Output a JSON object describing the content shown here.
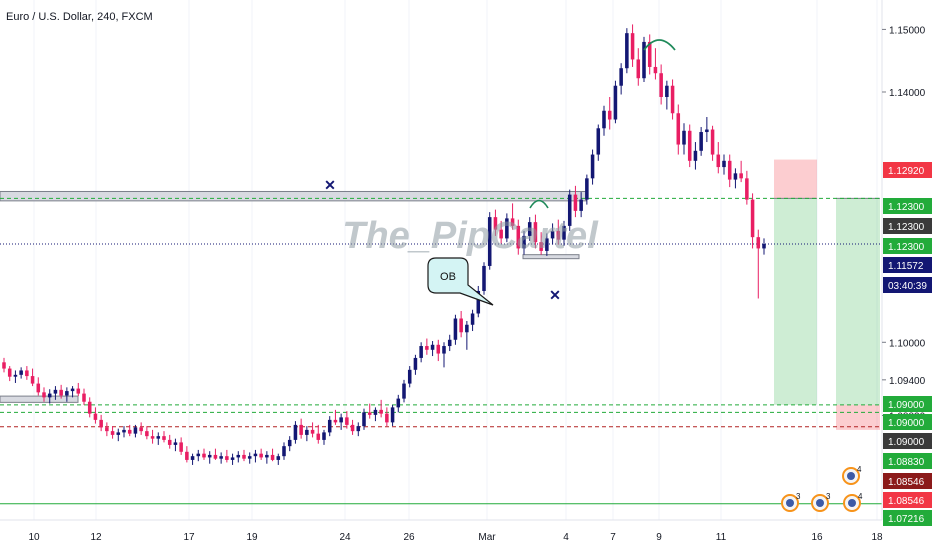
{
  "header": {
    "symbol_title": "Euro / U.S. Dollar, 240, FXCM"
  },
  "watermark": "The_PipCartel",
  "callout": {
    "text": "OB"
  },
  "countdown": "03:40:39",
  "chart_data": {
    "type": "candlestick",
    "title": "Euro / U.S. Dollar, 240, FXCM",
    "ylim": [
      1.0716,
      1.1547
    ],
    "y_ticks": [
      "1.15000",
      "1.14000",
      "1.10000",
      "1.09400",
      "1.08830"
    ],
    "x_ticks": [
      "10",
      "12",
      "17",
      "19",
      "24",
      "26",
      "Mar",
      "4",
      "7",
      "9",
      "11",
      "16",
      "18"
    ],
    "price_tags": [
      {
        "value": "1.12920",
        "price": 1.1292,
        "bg": "#f23645",
        "fg": "#ffffff"
      },
      {
        "value": "1.12300",
        "price": 1.123,
        "bg": "#22ab3a",
        "fg": "#ffffff"
      },
      {
        "value": "1.12300",
        "price": 1.123,
        "bg": "#3a3a3a",
        "fg": "#ffffff",
        "pos": "stack-below"
      },
      {
        "value": "1.12300",
        "price": 1.121,
        "bg": "#22ab3a",
        "fg": "#ffffff"
      },
      {
        "value": "1.11572",
        "price": 1.1157,
        "bg": "#131773",
        "fg": "#ffffff"
      },
      {
        "value": "1.09000",
        "price": 1.09,
        "bg": "#22ab3a",
        "fg": "#ffffff"
      },
      {
        "value": "1.09000",
        "price": 1.0888,
        "bg": "#22ab3a",
        "fg": "#ffffff"
      },
      {
        "value": "1.09000",
        "price": 1.0863,
        "bg": "#3a3a3a",
        "fg": "#ffffff"
      },
      {
        "value": "1.08830",
        "price": 1.0835,
        "bg": "#22ab3a",
        "fg": "#ffffff"
      },
      {
        "value": "1.08546",
        "price": 1.0806,
        "bg": "#8b1a1a",
        "fg": "#ffffff"
      },
      {
        "value": "1.08546",
        "price": 1.0777,
        "bg": "#f23645",
        "fg": "#ffffff"
      },
      {
        "value": "1.07216",
        "price": 1.0742,
        "bg": "#22ab3a",
        "fg": "#ffffff"
      }
    ],
    "levels": [
      {
        "name": "resistance-zone-level",
        "price": 1.123,
        "color": "#22ab3a",
        "style": "dashed"
      },
      {
        "name": "current-price-line",
        "price": 1.1157,
        "color": "#131773",
        "style": "dotted"
      },
      {
        "name": "target-level-a",
        "price": 1.09,
        "color": "#22ab3a",
        "style": "dashed"
      },
      {
        "name": "target-level-b",
        "price": 1.0888,
        "color": "#22ab3a",
        "style": "dashed"
      },
      {
        "name": "stop-level",
        "price": 1.0865,
        "color": "#b22222",
        "style": "dashed"
      },
      {
        "name": "bottom-line",
        "price": 1.0742,
        "color": "#22ab3a",
        "style": "solid"
      }
    ],
    "candles_key": [
      "o",
      "h",
      "l",
      "c"
    ],
    "candles": [
      [
        1.0968,
        1.0975,
        1.0952,
        1.0958
      ],
      [
        1.0958,
        1.0962,
        1.0938,
        1.0945
      ],
      [
        1.0945,
        1.0955,
        1.0935,
        1.0948
      ],
      [
        1.0948,
        1.096,
        1.0942,
        1.0955
      ],
      [
        1.0955,
        1.0962,
        1.094,
        1.0946
      ],
      [
        1.0946,
        1.0958,
        1.093,
        1.0934
      ],
      [
        1.0934,
        1.0944,
        1.0915,
        1.092
      ],
      [
        1.092,
        1.0928,
        1.0905,
        1.0912
      ],
      [
        1.0912,
        1.0925,
        1.0902,
        1.0918
      ],
      [
        1.0918,
        1.093,
        1.0908,
        1.0924
      ],
      [
        1.0924,
        1.0932,
        1.091,
        1.0915
      ],
      [
        1.0915,
        1.0928,
        1.0905,
        1.0922
      ],
      [
        1.0922,
        1.093,
        1.0912,
        1.0926
      ],
      [
        1.0926,
        1.0935,
        1.0914,
        1.0918
      ],
      [
        1.0918,
        1.0926,
        1.09,
        1.0905
      ],
      [
        1.0905,
        1.0912,
        1.088,
        1.0886
      ],
      [
        1.0886,
        1.0896,
        1.087,
        1.0876
      ],
      [
        1.0876,
        1.0884,
        1.0858,
        1.0864
      ],
      [
        1.0864,
        1.0872,
        1.085,
        1.0858
      ],
      [
        1.0858,
        1.0866,
        1.0846,
        1.0852
      ],
      [
        1.0852,
        1.0862,
        1.0842,
        1.0856
      ],
      [
        1.0856,
        1.0866,
        1.0848,
        1.086
      ],
      [
        1.086,
        1.0868,
        1.085,
        1.0854
      ],
      [
        1.0854,
        1.0868,
        1.0848,
        1.0864
      ],
      [
        1.0864,
        1.0872,
        1.0852,
        1.0858
      ],
      [
        1.0858,
        1.0866,
        1.0845,
        1.085
      ],
      [
        1.085,
        1.086,
        1.0838,
        1.0846
      ],
      [
        1.0846,
        1.0856,
        1.0836,
        1.085
      ],
      [
        1.085,
        1.0858,
        1.084,
        1.0844
      ],
      [
        1.0844,
        1.0852,
        1.083,
        1.0836
      ],
      [
        1.0836,
        1.0846,
        1.0826,
        1.084
      ],
      [
        1.084,
        1.0848,
        1.082,
        1.0825
      ],
      [
        1.0825,
        1.0834,
        1.0808,
        1.0812
      ],
      [
        1.0812,
        1.0822,
        1.0804,
        1.0818
      ],
      [
        1.0818,
        1.0828,
        1.081,
        1.0822
      ],
      [
        1.0822,
        1.083,
        1.0812,
        1.0816
      ],
      [
        1.0816,
        1.0826,
        1.0806,
        1.082
      ],
      [
        1.082,
        1.083,
        1.0812,
        1.0814
      ],
      [
        1.0814,
        1.0824,
        1.0806,
        1.0818
      ],
      [
        1.0818,
        1.0828,
        1.0808,
        1.0812
      ],
      [
        1.0812,
        1.0822,
        1.0804,
        1.0816
      ],
      [
        1.0816,
        1.0826,
        1.0808,
        1.082
      ],
      [
        1.082,
        1.0828,
        1.081,
        1.0814
      ],
      [
        1.0814,
        1.0824,
        1.0806,
        1.0818
      ],
      [
        1.0818,
        1.0828,
        1.0808,
        1.0822
      ],
      [
        1.0822,
        1.083,
        1.0812,
        1.0816
      ],
      [
        1.0816,
        1.0826,
        1.0806,
        1.082
      ],
      [
        1.082,
        1.083,
        1.081,
        1.0812
      ],
      [
        1.0812,
        1.0822,
        1.0804,
        1.0818
      ],
      [
        1.0818,
        1.084,
        1.0812,
        1.0834
      ],
      [
        1.0834,
        1.085,
        1.0826,
        1.0844
      ],
      [
        1.0844,
        1.0874,
        1.0838,
        1.0868
      ],
      [
        1.0868,
        1.0878,
        1.0846,
        1.0852
      ],
      [
        1.0852,
        1.0866,
        1.0842,
        1.086
      ],
      [
        1.086,
        1.0872,
        1.0848,
        1.0854
      ],
      [
        1.0854,
        1.0868,
        1.0838,
        1.0844
      ],
      [
        1.0844,
        1.086,
        1.0836,
        1.0856
      ],
      [
        1.0856,
        1.0882,
        1.085,
        1.0876
      ],
      [
        1.0876,
        1.0892,
        1.0868,
        1.0872
      ],
      [
        1.0872,
        1.0886,
        1.086,
        1.088
      ],
      [
        1.088,
        1.089,
        1.0862,
        1.0868
      ],
      [
        1.0868,
        1.0876,
        1.0852,
        1.0858
      ],
      [
        1.0858,
        1.0872,
        1.085,
        1.0866
      ],
      [
        1.0866,
        1.0894,
        1.086,
        1.0888
      ],
      [
        1.0888,
        1.0902,
        1.0878,
        1.0884
      ],
      [
        1.0884,
        1.0896,
        1.0874,
        1.0892
      ],
      [
        1.0892,
        1.0908,
        1.088,
        1.0886
      ],
      [
        1.0886,
        1.0896,
        1.0866,
        1.0872
      ],
      [
        1.0872,
        1.09,
        1.0866,
        1.0896
      ],
      [
        1.0896,
        1.0916,
        1.0888,
        1.091
      ],
      [
        1.091,
        1.094,
        1.0904,
        1.0934
      ],
      [
        1.0934,
        1.0962,
        1.0928,
        1.0956
      ],
      [
        1.0956,
        1.098,
        1.0948,
        1.0975
      ],
      [
        1.0975,
        1.1,
        1.0968,
        1.0994
      ],
      [
        1.0994,
        1.1006,
        1.098,
        1.0988
      ],
      [
        1.0988,
        1.1002,
        1.0978,
        1.0996
      ],
      [
        1.0996,
        1.1004,
        1.097,
        1.0982
      ],
      [
        1.0982,
        1.1,
        1.096,
        1.0994
      ],
      [
        1.0994,
        1.1012,
        1.0986,
        1.1004
      ],
      [
        1.1004,
        1.1044,
        1.0996,
        1.1038
      ],
      [
        1.1038,
        1.105,
        1.1008,
        1.1016
      ],
      [
        1.1016,
        1.1034,
        1.0988,
        1.1028
      ],
      [
        1.1028,
        1.1052,
        1.1018,
        1.1046
      ],
      [
        1.1046,
        1.109,
        1.104,
        1.1082
      ],
      [
        1.1082,
        1.1128,
        1.1076,
        1.1122
      ],
      [
        1.1122,
        1.1208,
        1.1116,
        1.12
      ],
      [
        1.12,
        1.1212,
        1.117,
        1.118
      ],
      [
        1.118,
        1.1194,
        1.1158,
        1.1166
      ],
      [
        1.1166,
        1.1206,
        1.116,
        1.1198
      ],
      [
        1.1198,
        1.1222,
        1.118,
        1.1186
      ],
      [
        1.1186,
        1.1196,
        1.114,
        1.115
      ],
      [
        1.115,
        1.1178,
        1.114,
        1.117
      ],
      [
        1.117,
        1.12,
        1.1162,
        1.1192
      ],
      [
        1.1192,
        1.1204,
        1.115,
        1.116
      ],
      [
        1.116,
        1.1176,
        1.114,
        1.1146
      ],
      [
        1.1146,
        1.1174,
        1.1138,
        1.1166
      ],
      [
        1.1166,
        1.119,
        1.1156,
        1.1178
      ],
      [
        1.1178,
        1.1196,
        1.1156,
        1.1164
      ],
      [
        1.1164,
        1.1194,
        1.1154,
        1.1186
      ],
      [
        1.1186,
        1.1244,
        1.1178,
        1.1236
      ],
      [
        1.1236,
        1.125,
        1.12,
        1.121
      ],
      [
        1.121,
        1.124,
        1.12,
        1.1228
      ],
      [
        1.1228,
        1.1268,
        1.122,
        1.1262
      ],
      [
        1.1262,
        1.1308,
        1.1252,
        1.13
      ],
      [
        1.13,
        1.1348,
        1.129,
        1.1342
      ],
      [
        1.1342,
        1.1378,
        1.133,
        1.137
      ],
      [
        1.137,
        1.1392,
        1.134,
        1.1356
      ],
      [
        1.1356,
        1.1418,
        1.135,
        1.141
      ],
      [
        1.141,
        1.1446,
        1.1396,
        1.1438
      ],
      [
        1.1438,
        1.1502,
        1.143,
        1.1494
      ],
      [
        1.1494,
        1.1508,
        1.144,
        1.1452
      ],
      [
        1.1452,
        1.147,
        1.141,
        1.1422
      ],
      [
        1.1422,
        1.1488,
        1.1416,
        1.148
      ],
      [
        1.148,
        1.1492,
        1.1428,
        1.144
      ],
      [
        1.144,
        1.147,
        1.142,
        1.143
      ],
      [
        1.143,
        1.1444,
        1.138,
        1.1392
      ],
      [
        1.1392,
        1.1418,
        1.1372,
        1.141
      ],
      [
        1.141,
        1.142,
        1.1356,
        1.1366
      ],
      [
        1.1366,
        1.138,
        1.13,
        1.1316
      ],
      [
        1.1316,
        1.135,
        1.13,
        1.1338
      ],
      [
        1.1338,
        1.1348,
        1.128,
        1.129
      ],
      [
        1.129,
        1.132,
        1.1276,
        1.1306
      ],
      [
        1.1306,
        1.1344,
        1.1298,
        1.1336
      ],
      [
        1.1336,
        1.136,
        1.132,
        1.134
      ],
      [
        1.134,
        1.1346,
        1.129,
        1.13
      ],
      [
        1.13,
        1.132,
        1.127,
        1.128
      ],
      [
        1.128,
        1.13,
        1.1268,
        1.129
      ],
      [
        1.129,
        1.13,
        1.1248,
        1.126
      ],
      [
        1.126,
        1.1278,
        1.1246,
        1.127
      ],
      [
        1.127,
        1.129,
        1.1256,
        1.1262
      ],
      [
        1.1262,
        1.1274,
        1.122,
        1.1228
      ],
      [
        1.1228,
        1.1238,
        1.115,
        1.1168
      ],
      [
        1.1168,
        1.118,
        1.107,
        1.115
      ],
      [
        1.115,
        1.1166,
        1.114,
        1.1157
      ]
    ]
  },
  "zones": [
    {
      "name": "resistance-zone",
      "x_from": 0,
      "x_to": 586,
      "p_top": 1.1241,
      "p_bot": 1.1226
    },
    {
      "name": "support-zone",
      "x_from": 0,
      "x_to": 78,
      "p_top": 1.0914,
      "p_bot": 1.0904
    },
    {
      "name": "ob-zone",
      "x_from": 523,
      "x_to": 579,
      "p_top": 1.114,
      "p_bot": 1.1134
    }
  ],
  "positions": [
    {
      "name": "short-position-1",
      "x_from": 774,
      "x_to": 817,
      "entry": 1.123,
      "stop": 1.1292,
      "target": 1.09
    },
    {
      "name": "short-position-2",
      "x_from": 836,
      "x_to": 880,
      "entry": 1.123,
      "stop": 1.09,
      "target": 1.086,
      "inverted": true
    }
  ],
  "event_badges": [
    "4",
    "3",
    "3",
    "4"
  ]
}
